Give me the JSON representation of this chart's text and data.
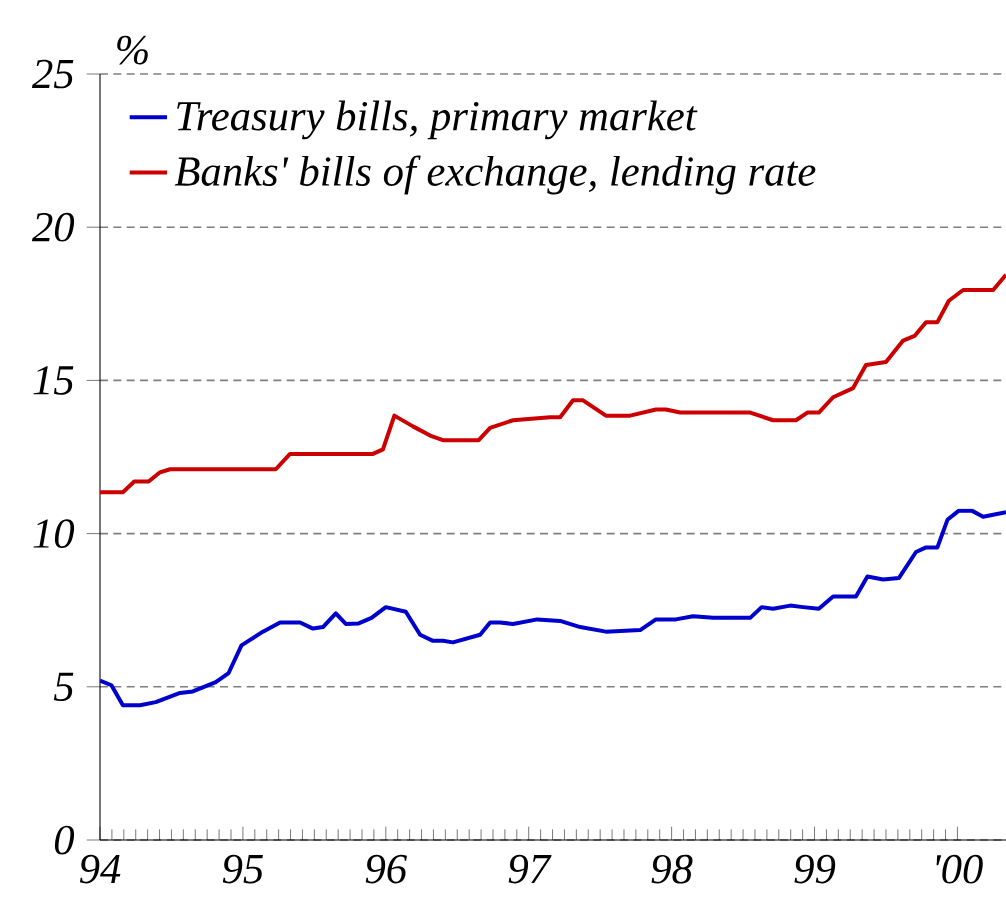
{
  "chart_data": {
    "type": "line",
    "ylabel": "%",
    "legend": "top left",
    "grid": "y",
    "line_style": "solid",
    "marker": "none",
    "xlim": [
      1994,
      2000.34
    ],
    "ylim": [
      0,
      25
    ],
    "yticks": [
      0,
      5,
      10,
      15,
      20,
      25
    ],
    "xticks": [
      {
        "value": 1994,
        "label": "94"
      },
      {
        "value": 1995,
        "label": "95"
      },
      {
        "value": 1996,
        "label": "96"
      },
      {
        "value": 1997,
        "label": "97"
      },
      {
        "value": 1998,
        "label": "98"
      },
      {
        "value": 1999,
        "label": "99"
      },
      {
        "value": 2000,
        "label": "'00"
      }
    ],
    "series": [
      {
        "name": "Treasury bills, primary market",
        "color": "#0000cc",
        "x": [
          1994.0,
          1994.08,
          1994.16,
          1994.28,
          1994.39,
          1994.56,
          1994.65,
          1994.81,
          1994.9,
          1994.99,
          1995.14,
          1995.26,
          1995.4,
          1995.49,
          1995.56,
          1995.65,
          1995.72,
          1995.81,
          1995.9,
          1996.0,
          1996.14,
          1996.24,
          1996.33,
          1996.4,
          1996.47,
          1996.66,
          1996.73,
          1996.8,
          1996.89,
          1997.06,
          1997.22,
          1997.36,
          1997.54,
          1997.78,
          1997.89,
          1998.03,
          1998.15,
          1998.29,
          1998.55,
          1998.63,
          1998.71,
          1998.83,
          1998.92,
          1999.03,
          1999.13,
          1999.29,
          1999.37,
          1999.48,
          1999.59,
          1999.71,
          1999.78,
          1999.86,
          1999.93,
          2000.01,
          2000.1,
          2000.18,
          2000.34
        ],
        "values": [
          5.2,
          5.05,
          4.4,
          4.4,
          4.5,
          4.8,
          4.85,
          5.15,
          5.45,
          6.35,
          6.8,
          7.1,
          7.1,
          6.9,
          6.95,
          7.4,
          7.05,
          7.07,
          7.25,
          7.6,
          7.45,
          6.7,
          6.5,
          6.5,
          6.45,
          6.7,
          7.1,
          7.1,
          7.05,
          7.2,
          7.15,
          6.95,
          6.8,
          6.85,
          7.2,
          7.2,
          7.3,
          7.25,
          7.25,
          7.6,
          7.55,
          7.65,
          7.6,
          7.55,
          7.95,
          7.95,
          8.6,
          8.5,
          8.55,
          9.4,
          9.55,
          9.55,
          10.45,
          10.75,
          10.75,
          10.55,
          10.7
        ]
      },
      {
        "name": "Banks' bills of exchange, lending rate",
        "color": "#cc0000",
        "x": [
          1994.0,
          1994.16,
          1994.24,
          1994.34,
          1994.42,
          1994.49,
          1995.23,
          1995.33,
          1995.91,
          1995.98,
          1996.06,
          1996.19,
          1996.31,
          1996.4,
          1996.65,
          1996.73,
          1996.89,
          1997.15,
          1997.22,
          1997.31,
          1997.38,
          1997.54,
          1997.71,
          1997.89,
          1997.96,
          1998.06,
          1998.55,
          1998.71,
          1998.87,
          1998.95,
          1999.03,
          1999.13,
          1999.27,
          1999.36,
          1999.5,
          1999.62,
          1999.7,
          1999.78,
          1999.86,
          1999.94,
          2000.04,
          2000.25,
          2000.34
        ],
        "values": [
          11.35,
          11.35,
          11.7,
          11.7,
          12.0,
          12.1,
          12.1,
          12.6,
          12.6,
          12.75,
          13.85,
          13.5,
          13.2,
          13.05,
          13.05,
          13.45,
          13.7,
          13.8,
          13.8,
          14.35,
          14.35,
          13.85,
          13.85,
          14.05,
          14.05,
          13.95,
          13.95,
          13.7,
          13.7,
          13.95,
          13.95,
          14.45,
          14.75,
          15.5,
          15.6,
          16.3,
          16.45,
          16.9,
          16.9,
          17.6,
          17.95,
          17.95,
          18.45
        ]
      }
    ]
  }
}
